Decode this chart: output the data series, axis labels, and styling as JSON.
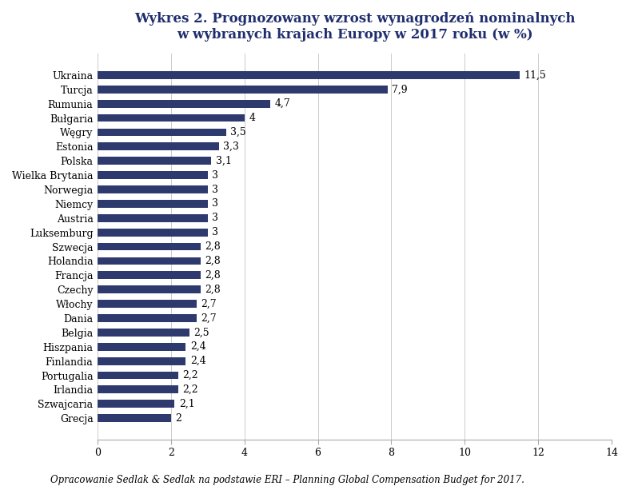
{
  "title_line1": "Wykres 2. Prognozowany wzrost wynagrodzeń nominalnych",
  "title_line2": "w wybranych krajach Europy w 2017 roku (w %)",
  "caption": "Opracowanie Sedlak & Sedlak na podstawie ERI – Planning Global Compensation Budget for 2017.",
  "countries": [
    "Ukraina",
    "Turcja",
    "Rumunia",
    "Bułgaria",
    "Węgry",
    "Estonia",
    "Polska",
    "Wielka Brytania",
    "Norwegia",
    "Niemcy",
    "Austria",
    "Luksemburg",
    "Szwecja",
    "Holandia",
    "Francja",
    "Czechy",
    "Włochy",
    "Dania",
    "Belgia",
    "Hiszpania",
    "Finlandia",
    "Portugalia",
    "Irlandia",
    "Szwajcaria",
    "Grecja"
  ],
  "values": [
    11.5,
    7.9,
    4.7,
    4.0,
    3.5,
    3.3,
    3.1,
    3.0,
    3.0,
    3.0,
    3.0,
    3.0,
    2.8,
    2.8,
    2.8,
    2.8,
    2.7,
    2.7,
    2.5,
    2.4,
    2.4,
    2.2,
    2.2,
    2.1,
    2.0
  ],
  "value_labels": [
    "11,5",
    "7,9",
    "4,7",
    "4",
    "3,5",
    "3,3",
    "3,1",
    "3",
    "3",
    "3",
    "3",
    "3",
    "2,8",
    "2,8",
    "2,8",
    "2,8",
    "2,7",
    "2,7",
    "2,5",
    "2,4",
    "2,4",
    "2,2",
    "2,2",
    "2,1",
    "2"
  ],
  "bar_color": "#2E3A6E",
  "xlim": [
    0,
    14
  ],
  "xticks": [
    0,
    2,
    4,
    6,
    8,
    10,
    12,
    14
  ],
  "title_fontsize": 12,
  "label_fontsize": 9,
  "value_fontsize": 9,
  "caption_fontsize": 8.5,
  "background_color": "#FFFFFF"
}
